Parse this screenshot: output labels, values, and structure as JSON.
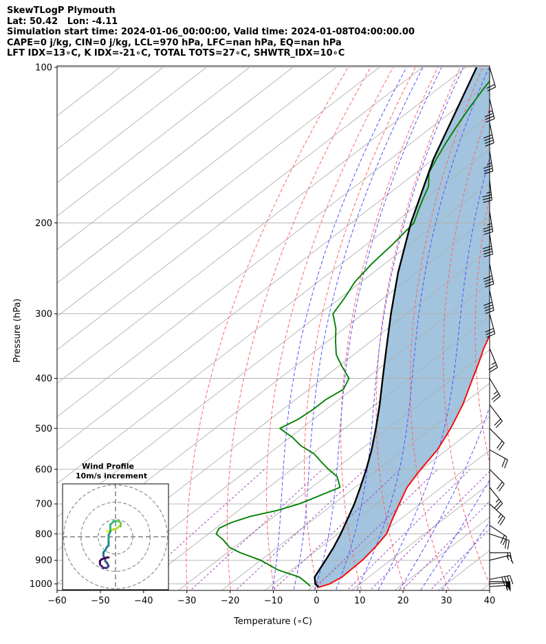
{
  "chart_data": {
    "type": "skewt",
    "title_lines": [
      "SkewTLogP Plymouth",
      "Lat: 50.42   Lon: -4.11",
      "Simulation start time: 2024-01-06_00:00:00, Valid time: 2024-01-08T04:00:00.00",
      "CAPE=0 j/kg, CIN=0 j/kg, LCL=970 hPa, LFC=nan hPa, EQ=nan hPa",
      "LFT IDX=13∘C, K IDX=-21∘C, TOTAL TOTS=27∘C, SHWTR_IDX=10∘C"
    ],
    "xlabel": "Temperature (∘C)",
    "ylabel": "Pressure (hPa)",
    "xlim": [
      -60,
      40
    ],
    "ylim": [
      1050,
      100
    ],
    "x_ticks": [
      -60,
      -50,
      -40,
      -30,
      -20,
      -10,
      0,
      10,
      20,
      30,
      40
    ],
    "x_tick_labels": [
      "−60",
      "−50",
      "−40",
      "−30",
      "−20",
      "−10",
      "0",
      "10",
      "20",
      "30",
      "40"
    ],
    "p_ticks": [
      1000,
      900,
      800,
      700,
      600,
      500,
      400,
      300,
      200,
      100
    ],
    "p_tick_labels": [
      "1000",
      "900",
      "800",
      "700",
      "600",
      "500",
      "400",
      "300",
      "200",
      "100"
    ],
    "series": [
      {
        "name": "Temperature",
        "color": "#ff0000",
        "p": [
          1015,
          1000,
          970,
          900,
          850,
          800,
          750,
          700,
          650,
          600,
          550,
          500,
          450,
          425,
          400,
          375,
          350,
          325,
          300,
          275,
          250,
          225,
          200,
          175,
          150,
          125,
          100
        ],
        "t": [
          1.5,
          3,
          3.8,
          3.5,
          2.6,
          1.2,
          -1.8,
          -4.8,
          -8,
          -10.2,
          -12.2,
          -15.5,
          -19.8,
          -22.5,
          -25.4,
          -28.4,
          -31.8,
          -35,
          -38.3,
          -42.5,
          -47.3,
          -53.5,
          -60.5,
          -68.5,
          -76.5,
          -84,
          -92
        ]
      },
      {
        "name": "Dewpoint",
        "color": "#008000",
        "p": [
          1010,
          1000,
          970,
          940,
          900,
          870,
          850,
          820,
          800,
          780,
          760,
          740,
          720,
          700,
          680,
          650,
          620,
          600,
          580,
          560,
          540,
          520,
          500,
          480,
          460,
          440,
          420,
          400,
          380,
          360,
          340,
          320,
          300,
          280,
          260,
          240,
          220,
          200,
          190,
          180,
          170,
          160,
          150,
          140,
          130,
          120,
          110,
          100
        ],
        "t": [
          -0.8,
          -2,
          -6,
          -13,
          -20,
          -27,
          -31,
          -35,
          -38.2,
          -39.2,
          -38,
          -35.5,
          -31,
          -28,
          -26.2,
          -23.5,
          -27.3,
          -31.5,
          -35.5,
          -39.5,
          -45,
          -49.5,
          -55,
          -53.5,
          -53,
          -53,
          -52,
          -54,
          -59,
          -64,
          -68,
          -72,
          -77,
          -79,
          -81.5,
          -83,
          -84,
          -85.5,
          -88,
          -90.5,
          -93,
          -97,
          -99.5,
          -102,
          -104.5,
          -107,
          -109.5,
          -112
        ]
      },
      {
        "name": "Parcel",
        "color": "#000000",
        "p": [
          1015,
          1000,
          970,
          950,
          900,
          850,
          800,
          750,
          700,
          650,
          600,
          550,
          500,
          450,
          400,
          350,
          300,
          250,
          200,
          150,
          100
        ],
        "t": [
          1.5,
          -0.3,
          -2.5,
          -3.2,
          -5,
          -7,
          -9.4,
          -12.2,
          -15.2,
          -18.8,
          -22.8,
          -27.4,
          -32.8,
          -39,
          -46.2,
          -54.3,
          -63.6,
          -74.2,
          -86.2,
          -100.2,
          -117.5
        ]
      }
    ],
    "cin_shading": {
      "between": [
        "Parcel",
        "Temperature"
      ],
      "color": "#a2c4de"
    },
    "skew_deg_per_log_unit": 154.5,
    "dry_adiabats_T_at_1000": [
      -30,
      -20,
      -10,
      0,
      10,
      20,
      30,
      40,
      50,
      60,
      70
    ],
    "moist_adiabats_T_at_1000": [
      -10,
      -5,
      0,
      5,
      10,
      15,
      20,
      25,
      30
    ],
    "mixing_ratio_lines_gkg": [
      0.1,
      0.4,
      1,
      2,
      4,
      7,
      10,
      16,
      24
    ],
    "isotherm_step": 10,
    "wind_barbs": {
      "p": [
        1012,
        1000,
        990,
        980,
        900,
        870,
        800,
        770,
        700,
        650,
        600,
        550,
        500,
        450,
        400,
        350,
        300,
        270,
        240,
        210,
        190,
        165,
        145,
        128,
        115,
        100
      ],
      "u": [
        -27,
        -27,
        -30,
        -21,
        -8,
        -8,
        -9,
        -9,
        -10,
        -8,
        -8,
        -9,
        -8,
        -7,
        -6,
        -5,
        -4,
        -4,
        -4,
        -3,
        -3,
        -2,
        -3,
        -4,
        -4,
        -3
      ],
      "v": [
        -2,
        -2,
        0,
        -4,
        -2,
        0,
        3,
        6,
        9,
        10,
        8,
        5,
        8,
        9,
        10,
        12,
        15,
        19,
        20,
        20,
        19,
        18,
        19,
        19,
        17,
        10
      ]
    },
    "hodograph": {
      "title_lines": [
        "Wind Profile",
        "10m/s increment"
      ],
      "rings_ms": [
        10,
        20,
        30
      ],
      "range_ms": 30,
      "points": [
        [
          -5,
          -3
        ],
        [
          -2,
          -4
        ],
        [
          1,
          -5
        ],
        [
          2,
          -6
        ],
        [
          3,
          -6
        ],
        [
          3,
          -7
        ],
        [
          3,
          -8
        ],
        [
          2,
          -9
        ],
        [
          0,
          -9
        ],
        [
          -1,
          -9
        ],
        [
          -3,
          -7
        ],
        [
          -3,
          -5
        ],
        [
          -3,
          -3
        ],
        [
          -4,
          -1
        ],
        [
          -4,
          1
        ],
        [
          -4,
          3
        ],
        [
          -4,
          5
        ],
        [
          -5,
          6
        ],
        [
          -6,
          8
        ],
        [
          -7,
          9
        ],
        [
          -7,
          11
        ],
        [
          -6,
          13
        ],
        [
          -6,
          14
        ],
        [
          -5,
          15
        ],
        [
          -4,
          17
        ],
        [
          -5,
          18
        ],
        [
          -6,
          18
        ],
        [
          -7,
          18
        ],
        [
          -8,
          17
        ],
        [
          -9,
          16
        ],
        [
          -9,
          15
        ],
        [
          -9,
          14
        ],
        [
          -8,
          13
        ],
        [
          -5,
          12
        ],
        [
          -4,
          12
        ]
      ]
    }
  }
}
